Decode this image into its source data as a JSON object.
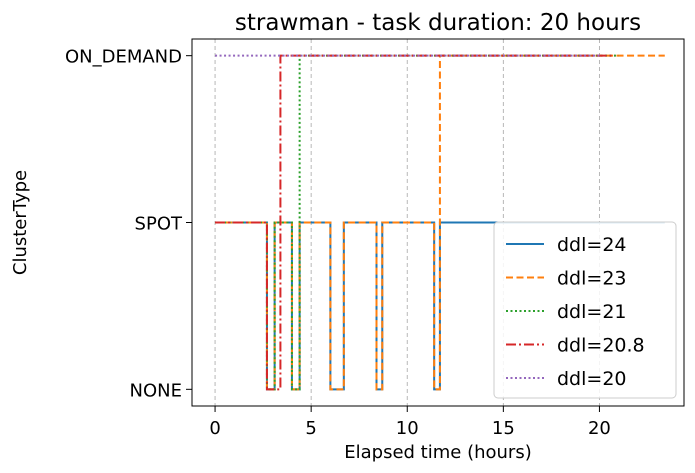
{
  "chart_data": {
    "type": "line",
    "title": "strawman - task duration: 20 hours",
    "xlabel": "Elapsed time (hours)",
    "ylabel": "ClusterType",
    "xlim": [
      -1.2,
      24.4
    ],
    "xticks": [
      0,
      5,
      10,
      15,
      20
    ],
    "xtick_labels": [
      "0",
      "5",
      "10",
      "15",
      "20"
    ],
    "y_categories": [
      "NONE",
      "SPOT",
      "ON_DEMAND"
    ],
    "y_values": [
      0,
      1,
      2
    ],
    "ylim": [
      -0.1,
      2.1
    ],
    "grid": "x-dashed",
    "legend_position": "lower right",
    "series": [
      {
        "name": "ddl=24",
        "color": "#1f77b4",
        "dash": "solid",
        "points": [
          [
            0,
            1
          ],
          [
            2.7,
            1
          ],
          [
            2.7,
            0
          ],
          [
            3.1,
            0
          ],
          [
            3.1,
            1
          ],
          [
            4.0,
            1
          ],
          [
            4.0,
            0
          ],
          [
            4.4,
            0
          ],
          [
            4.4,
            1
          ],
          [
            6.0,
            1
          ],
          [
            6.0,
            0
          ],
          [
            6.7,
            0
          ],
          [
            6.7,
            1
          ],
          [
            8.4,
            1
          ],
          [
            8.4,
            0
          ],
          [
            8.7,
            0
          ],
          [
            8.7,
            1
          ],
          [
            11.4,
            1
          ],
          [
            11.4,
            0
          ],
          [
            11.7,
            0
          ],
          [
            11.7,
            1
          ],
          [
            23.4,
            1
          ]
        ]
      },
      {
        "name": "ddl=23",
        "color": "#ff7f0e",
        "dash": "dashed",
        "points": [
          [
            0,
            1
          ],
          [
            2.7,
            1
          ],
          [
            2.7,
            0
          ],
          [
            3.1,
            0
          ],
          [
            3.1,
            1
          ],
          [
            4.0,
            1
          ],
          [
            4.0,
            0
          ],
          [
            4.4,
            0
          ],
          [
            4.4,
            1
          ],
          [
            6.0,
            1
          ],
          [
            6.0,
            0
          ],
          [
            6.7,
            0
          ],
          [
            6.7,
            1
          ],
          [
            8.4,
            1
          ],
          [
            8.4,
            0
          ],
          [
            8.7,
            0
          ],
          [
            8.7,
            1
          ],
          [
            11.4,
            1
          ],
          [
            11.4,
            0
          ],
          [
            11.7,
            0
          ],
          [
            11.7,
            2
          ],
          [
            23.4,
            2
          ]
        ]
      },
      {
        "name": "ddl=21",
        "color": "#2ca02c",
        "dash": "dotted",
        "points": [
          [
            0,
            1
          ],
          [
            2.7,
            1
          ],
          [
            2.7,
            0
          ],
          [
            3.1,
            0
          ],
          [
            3.1,
            1
          ],
          [
            4.0,
            1
          ],
          [
            4.0,
            0
          ],
          [
            4.4,
            0
          ],
          [
            4.4,
            2
          ],
          [
            21.0,
            2
          ]
        ]
      },
      {
        "name": "ddl=20.8",
        "color": "#d62728",
        "dash": "dashdot",
        "points": [
          [
            0,
            1
          ],
          [
            2.7,
            1
          ],
          [
            2.7,
            0
          ],
          [
            3.4,
            0
          ],
          [
            3.4,
            2
          ],
          [
            20.8,
            2
          ]
        ]
      },
      {
        "name": "ddl=20",
        "color": "#9467bd",
        "dash": "dotted",
        "points": [
          [
            0,
            2
          ],
          [
            20.0,
            2
          ]
        ]
      }
    ]
  }
}
